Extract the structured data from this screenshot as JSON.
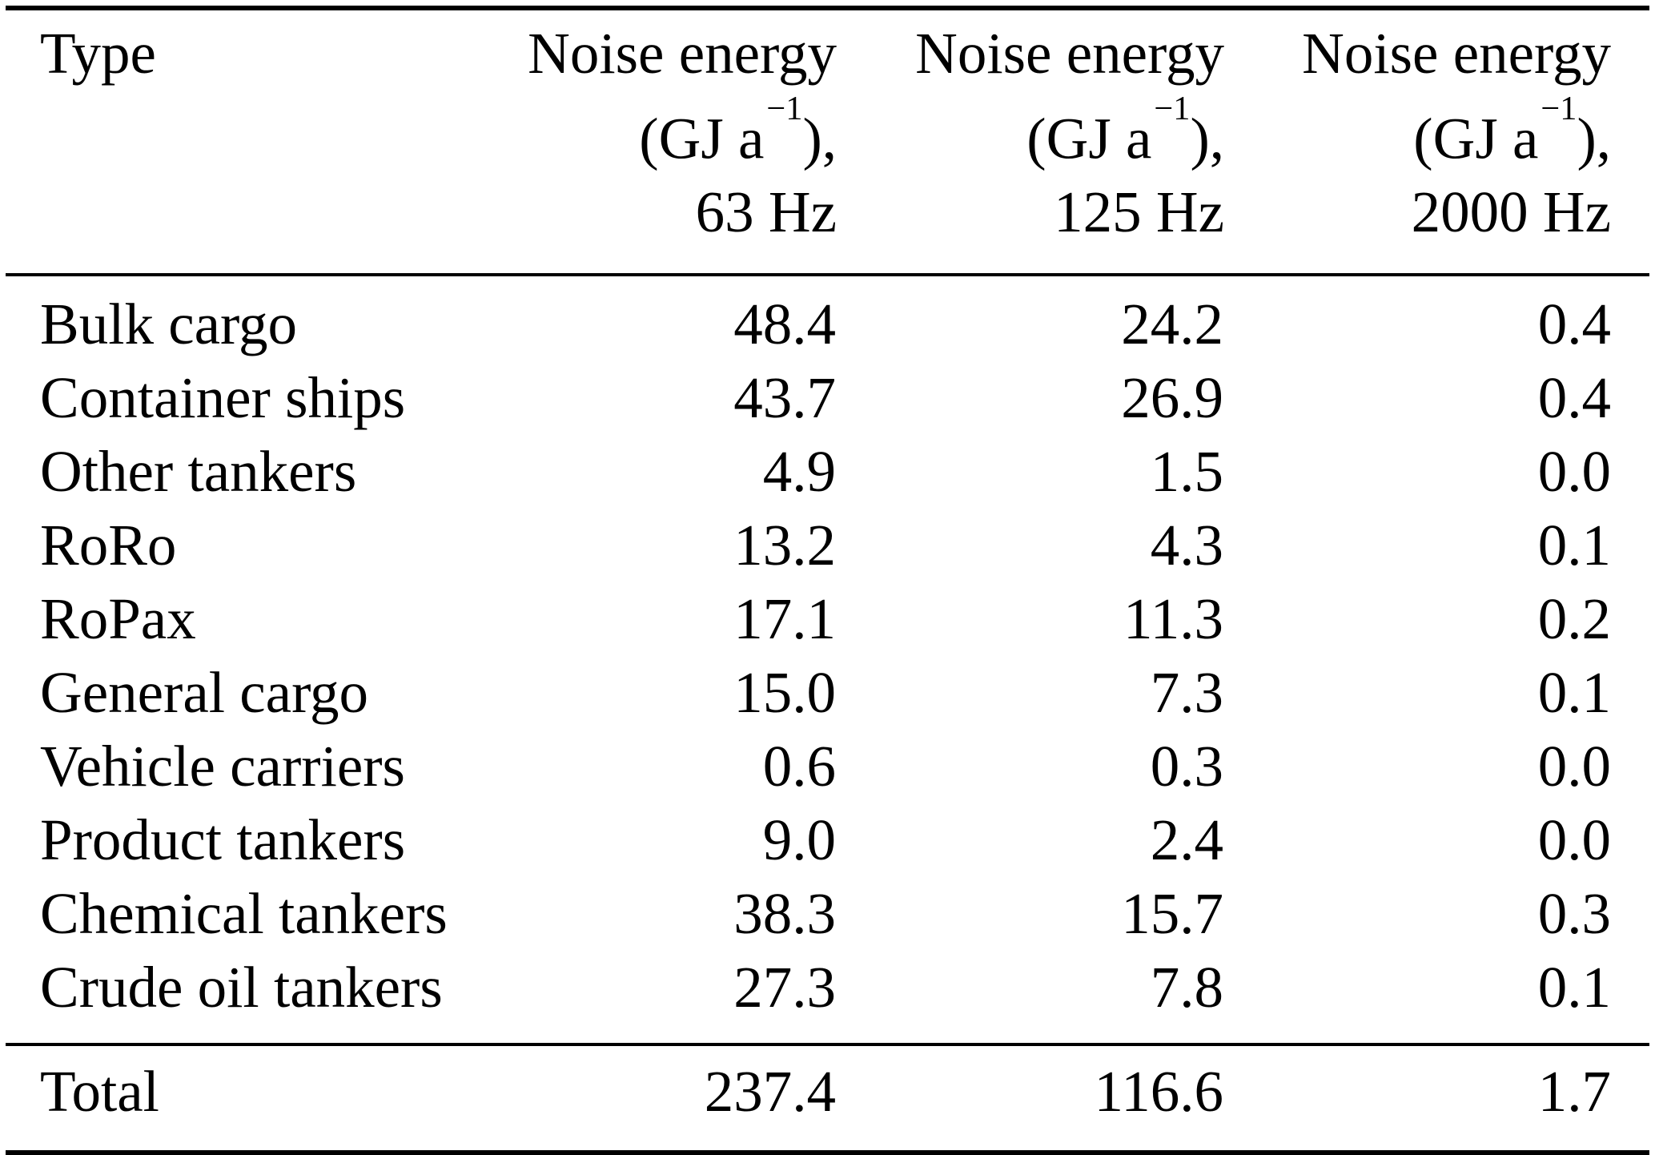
{
  "page": {
    "background_color": "#ffffff",
    "text_color": "#000000"
  },
  "table": {
    "header": {
      "type_label": "Type",
      "noise_columns": [
        {
          "title": "Noise energy",
          "unit_prefix": "(GJ a",
          "unit_exponent": "−1",
          "unit_suffix": "),",
          "frequency": "63 Hz"
        },
        {
          "title": "Noise energy",
          "unit_prefix": "(GJ a",
          "unit_exponent": "−1",
          "unit_suffix": "),",
          "frequency": "125 Hz"
        },
        {
          "title": "Noise energy",
          "unit_prefix": "(GJ a",
          "unit_exponent": "−1",
          "unit_suffix": "),",
          "frequency": "2000 Hz"
        }
      ]
    },
    "rows": [
      {
        "type": "Bulk cargo",
        "hz63": "48.4",
        "hz125": "24.2",
        "hz2000": "0.4"
      },
      {
        "type": "Container ships",
        "hz63": "43.7",
        "hz125": "26.9",
        "hz2000": "0.4"
      },
      {
        "type": "Other tankers",
        "hz63": "4.9",
        "hz125": "1.5",
        "hz2000": "0.0"
      },
      {
        "type": "RoRo",
        "hz63": "13.2",
        "hz125": "4.3",
        "hz2000": "0.1"
      },
      {
        "type": "RoPax",
        "hz63": "17.1",
        "hz125": "11.3",
        "hz2000": "0.2"
      },
      {
        "type": "General cargo",
        "hz63": "15.0",
        "hz125": "7.3",
        "hz2000": "0.1"
      },
      {
        "type": "Vehicle carriers",
        "hz63": "0.6",
        "hz125": "0.3",
        "hz2000": "0.0"
      },
      {
        "type": "Product tankers",
        "hz63": "9.0",
        "hz125": "2.4",
        "hz2000": "0.0"
      },
      {
        "type": "Chemical tankers",
        "hz63": "38.3",
        "hz125": "15.7",
        "hz2000": "0.3"
      },
      {
        "type": "Crude oil tankers",
        "hz63": "27.3",
        "hz125": "7.8",
        "hz2000": "0.1"
      }
    ],
    "total_row": {
      "label": "Total",
      "hz63": "237.4",
      "hz125": "116.6",
      "hz2000": "1.7"
    }
  }
}
